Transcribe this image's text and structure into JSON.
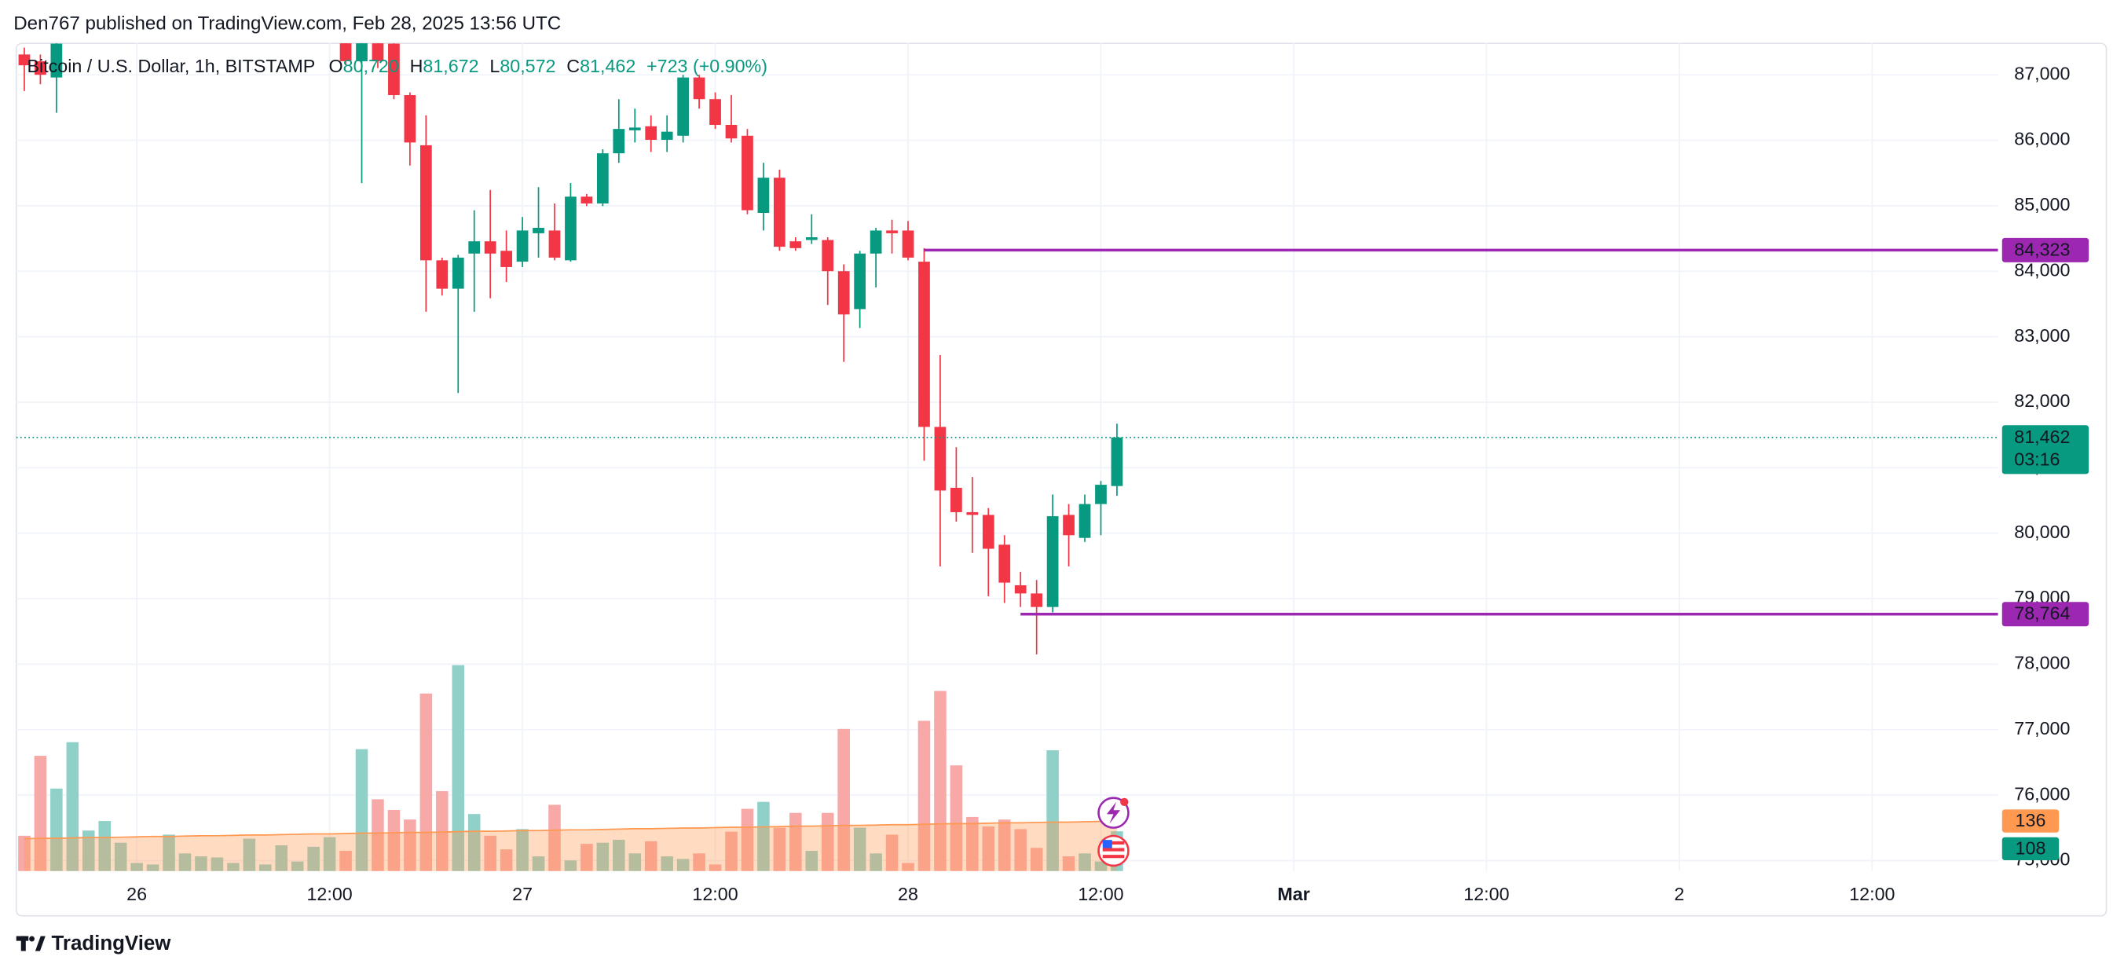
{
  "header": {
    "attribution": "Den767 published on TradingView.com, Feb 28, 2025 13:56 UTC"
  },
  "footer": {
    "brand": "TradingView"
  },
  "chart_data": {
    "type": "candlestick",
    "legend": {
      "symbol": "Bitcoin / U.S. Dollar, 1h, BITSTAMP",
      "fields": [
        "O",
        "H",
        "L",
        "C"
      ],
      "field_values": [
        "80,720",
        "81,672",
        "80,572",
        "81,462"
      ],
      "change": "+723 (+0.90%)"
    },
    "x": [
      "2025-02-25T17:00",
      "2025-02-25T18:00",
      "2025-02-25T19:00",
      "2025-02-25T20:00",
      "2025-02-25T21:00",
      "2025-02-25T22:00",
      "2025-02-25T23:00",
      "2025-02-26T00:00",
      "2025-02-26T01:00",
      "2025-02-26T02:00",
      "2025-02-26T03:00",
      "2025-02-26T04:00",
      "2025-02-26T05:00",
      "2025-02-26T06:00",
      "2025-02-26T07:00",
      "2025-02-26T08:00",
      "2025-02-26T09:00",
      "2025-02-26T10:00",
      "2025-02-26T11:00",
      "2025-02-26T12:00",
      "2025-02-26T13:00",
      "2025-02-26T14:00",
      "2025-02-26T15:00",
      "2025-02-26T16:00",
      "2025-02-26T17:00",
      "2025-02-26T18:00",
      "2025-02-26T19:00",
      "2025-02-26T20:00",
      "2025-02-26T21:00",
      "2025-02-26T22:00",
      "2025-02-26T23:00",
      "2025-02-27T00:00",
      "2025-02-27T01:00",
      "2025-02-27T02:00",
      "2025-02-27T03:00",
      "2025-02-27T04:00",
      "2025-02-27T05:00",
      "2025-02-27T06:00",
      "2025-02-27T07:00",
      "2025-02-27T08:00",
      "2025-02-27T09:00",
      "2025-02-27T10:00",
      "2025-02-27T11:00",
      "2025-02-27T12:00",
      "2025-02-27T13:00",
      "2025-02-27T14:00",
      "2025-02-27T15:00",
      "2025-02-27T16:00",
      "2025-02-27T17:00",
      "2025-02-27T18:00",
      "2025-02-27T19:00",
      "2025-02-27T20:00",
      "2025-02-27T21:00",
      "2025-02-27T22:00",
      "2025-02-27T23:00",
      "2025-02-28T00:00",
      "2025-02-28T01:00",
      "2025-02-28T02:00",
      "2025-02-28T03:00",
      "2025-02-28T04:00",
      "2025-02-28T05:00",
      "2025-02-28T06:00",
      "2025-02-28T07:00",
      "2025-02-28T08:00",
      "2025-02-28T09:00",
      "2025-02-28T10:00",
      "2025-02-28T11:00",
      "2025-02-28T12:00",
      "2025-02-28T13:00"
    ],
    "open": [
      87310,
      87207,
      86959,
      null,
      null,
      null,
      null,
      null,
      null,
      null,
      null,
      null,
      null,
      null,
      null,
      null,
      null,
      null,
      null,
      null,
      87600,
      87207,
      87500,
      87476,
      86690,
      85924,
      84167,
      83733,
      84270,
      84457,
      84312,
      84146,
      84580,
      84622,
      84167,
      85139,
      85035,
      85801,
      86152,
      86214,
      86007,
      86069,
      86959,
      86628,
      86235,
      86069,
      84891,
      85428,
      84457,
      84477,
      84477,
      84001,
      83422,
      84270,
      84622,
      84622,
      84146,
      81623,
      80693,
      80321,
      80279,
      79824,
      79204,
      79080,
      78873,
      80279,
      79928,
      80445,
      80720
    ],
    "high": [
      87414,
      87310,
      87600,
      null,
      null,
      null,
      null,
      null,
      null,
      null,
      null,
      null,
      null,
      null,
      null,
      null,
      null,
      null,
      null,
      null,
      87700,
      87650,
      87650,
      87550,
      86731,
      86380,
      84208,
      84250,
      84932,
      85242,
      84622,
      84829,
      85284,
      85035,
      85346,
      85180,
      85863,
      86628,
      86483,
      86380,
      86380,
      87000,
      87000,
      86731,
      86690,
      86173,
      85656,
      85552,
      84519,
      84870,
      84519,
      84105,
      84312,
      84663,
      84787,
      84767,
      84353,
      82719,
      81313,
      80858,
      80383,
      79969,
      79410,
      79286,
      80590,
      80445,
      80590,
      80797,
      81672
    ],
    "low": [
      86752,
      86855,
      86421,
      null,
      null,
      null,
      null,
      null,
      null,
      null,
      null,
      null,
      null,
      null,
      null,
      null,
      null,
      null,
      null,
      null,
      87145,
      85346,
      87103,
      86628,
      85614,
      83381,
      83629,
      82140,
      83381,
      83588,
      83836,
      84064,
      84208,
      84167,
      84146,
      84994,
      84994,
      85656,
      85966,
      85821,
      85821,
      85966,
      86483,
      86173,
      85966,
      84870,
      84622,
      84312,
      84312,
      84415,
      83485,
      82616,
      83133,
      83753,
      84270,
      84167,
      81106,
      79493,
      80176,
      79700,
      79038,
      78935,
      78873,
      78149,
      78790,
      79493,
      79866,
      79969,
      80572
    ],
    "close": [
      87145,
      87000,
      87476,
      null,
      null,
      null,
      null,
      null,
      null,
      null,
      null,
      null,
      null,
      null,
      null,
      null,
      null,
      null,
      null,
      null,
      87207,
      87500,
      87207,
      86690,
      85966,
      84167,
      83733,
      84208,
      84457,
      84270,
      84064,
      84622,
      84663,
      84208,
      85139,
      85035,
      85801,
      86173,
      86194,
      86007,
      86131,
      86959,
      86628,
      86235,
      86028,
      84932,
      85428,
      84374,
      84353,
      84519,
      84001,
      83340,
      84270,
      84622,
      84580,
      84208,
      81623,
      80651,
      80321,
      80279,
      79762,
      79245,
      79080,
      78873,
      80259,
      79969,
      80445,
      80739,
      81462
    ],
    "volume": [
      96,
      313,
      224,
      350,
      110,
      136,
      77,
      22,
      18,
      99,
      48,
      40,
      37,
      22,
      88,
      18,
      70,
      26,
      66,
      92,
      55,
      331,
      195,
      166,
      140,
      482,
      217,
      559,
      155,
      96,
      59,
      114,
      40,
      180,
      29,
      74,
      77,
      85,
      48,
      81,
      40,
      33,
      48,
      18,
      107,
      169,
      188,
      118,
      158,
      55,
      158,
      386,
      118,
      48,
      99,
      22,
      408,
      489,
      287,
      147,
      121,
      140,
      114,
      63,
      328,
      40,
      48,
      26,
      108
    ],
    "volume_ma": [
      88,
      89,
      89,
      90,
      91,
      91,
      92,
      93,
      94,
      94,
      95,
      96,
      96,
      97,
      98,
      98,
      99,
      100,
      101,
      101,
      102,
      103,
      103,
      104,
      105,
      105,
      106,
      107,
      108,
      108,
      109,
      110,
      110,
      111,
      112,
      112,
      113,
      114,
      115,
      115,
      116,
      117,
      117,
      118,
      119,
      119,
      120,
      121,
      122,
      122,
      123,
      124,
      124,
      125,
      126,
      126,
      127,
      128,
      129,
      129,
      130,
      131,
      131,
      132,
      133,
      133,
      134,
      135,
      136
    ],
    "up_color": "#089981",
    "down_color": "#f23645",
    "volume_up_color": "#8fd1c8",
    "volume_down_color": "#f7a9a7",
    "volume_ma_color": "#ff9850",
    "last_price_label": "81,462",
    "countdown": "03:16",
    "levels": [
      {
        "value": 84323,
        "label": "84,323",
        "start": "2025-02-28T01:00"
      },
      {
        "value": 78764,
        "label": "78,764",
        "start": "2025-02-28T07:00"
      }
    ],
    "level_color": "#9c27b0",
    "ylim": [
      74840,
      87480
    ],
    "yticks": [
      {
        "value": 75000,
        "label": "75,000"
      },
      {
        "value": 76000,
        "label": "76,000"
      },
      {
        "value": 77000,
        "label": "77,000"
      },
      {
        "value": 78000,
        "label": "78,000"
      },
      {
        "value": 79000,
        "label": "79,000"
      },
      {
        "value": 80000,
        "label": "80,000"
      },
      {
        "value": 81000,
        "label": "81,000"
      },
      {
        "value": 82000,
        "label": "82,000"
      },
      {
        "value": 83000,
        "label": "83,000"
      },
      {
        "value": 84000,
        "label": "84,000"
      },
      {
        "value": 85000,
        "label": "85,000"
      },
      {
        "value": 86000,
        "label": "86,000"
      },
      {
        "value": 87000,
        "label": "87,000"
      }
    ],
    "xlim": [
      "2025-02-25T16:30",
      "2025-03-02T19:50"
    ],
    "xticks": [
      {
        "value": "2025-02-26T00:00",
        "label": "26"
      },
      {
        "value": "2025-02-26T12:00",
        "label": "12:00"
      },
      {
        "value": "2025-02-27T00:00",
        "label": "27"
      },
      {
        "value": "2025-02-27T12:00",
        "label": "12:00"
      },
      {
        "value": "2025-02-28T00:00",
        "label": "28"
      },
      {
        "value": "2025-02-28T12:00",
        "label": "12:00"
      },
      {
        "value": "2025-03-01T00:00",
        "label": "Mar"
      },
      {
        "value": "2025-03-01T12:00",
        "label": "12:00"
      },
      {
        "value": "2025-03-02T00:00",
        "label": "2"
      },
      {
        "value": "2025-03-02T12:00",
        "label": "12:00"
      }
    ],
    "grid": true
  }
}
